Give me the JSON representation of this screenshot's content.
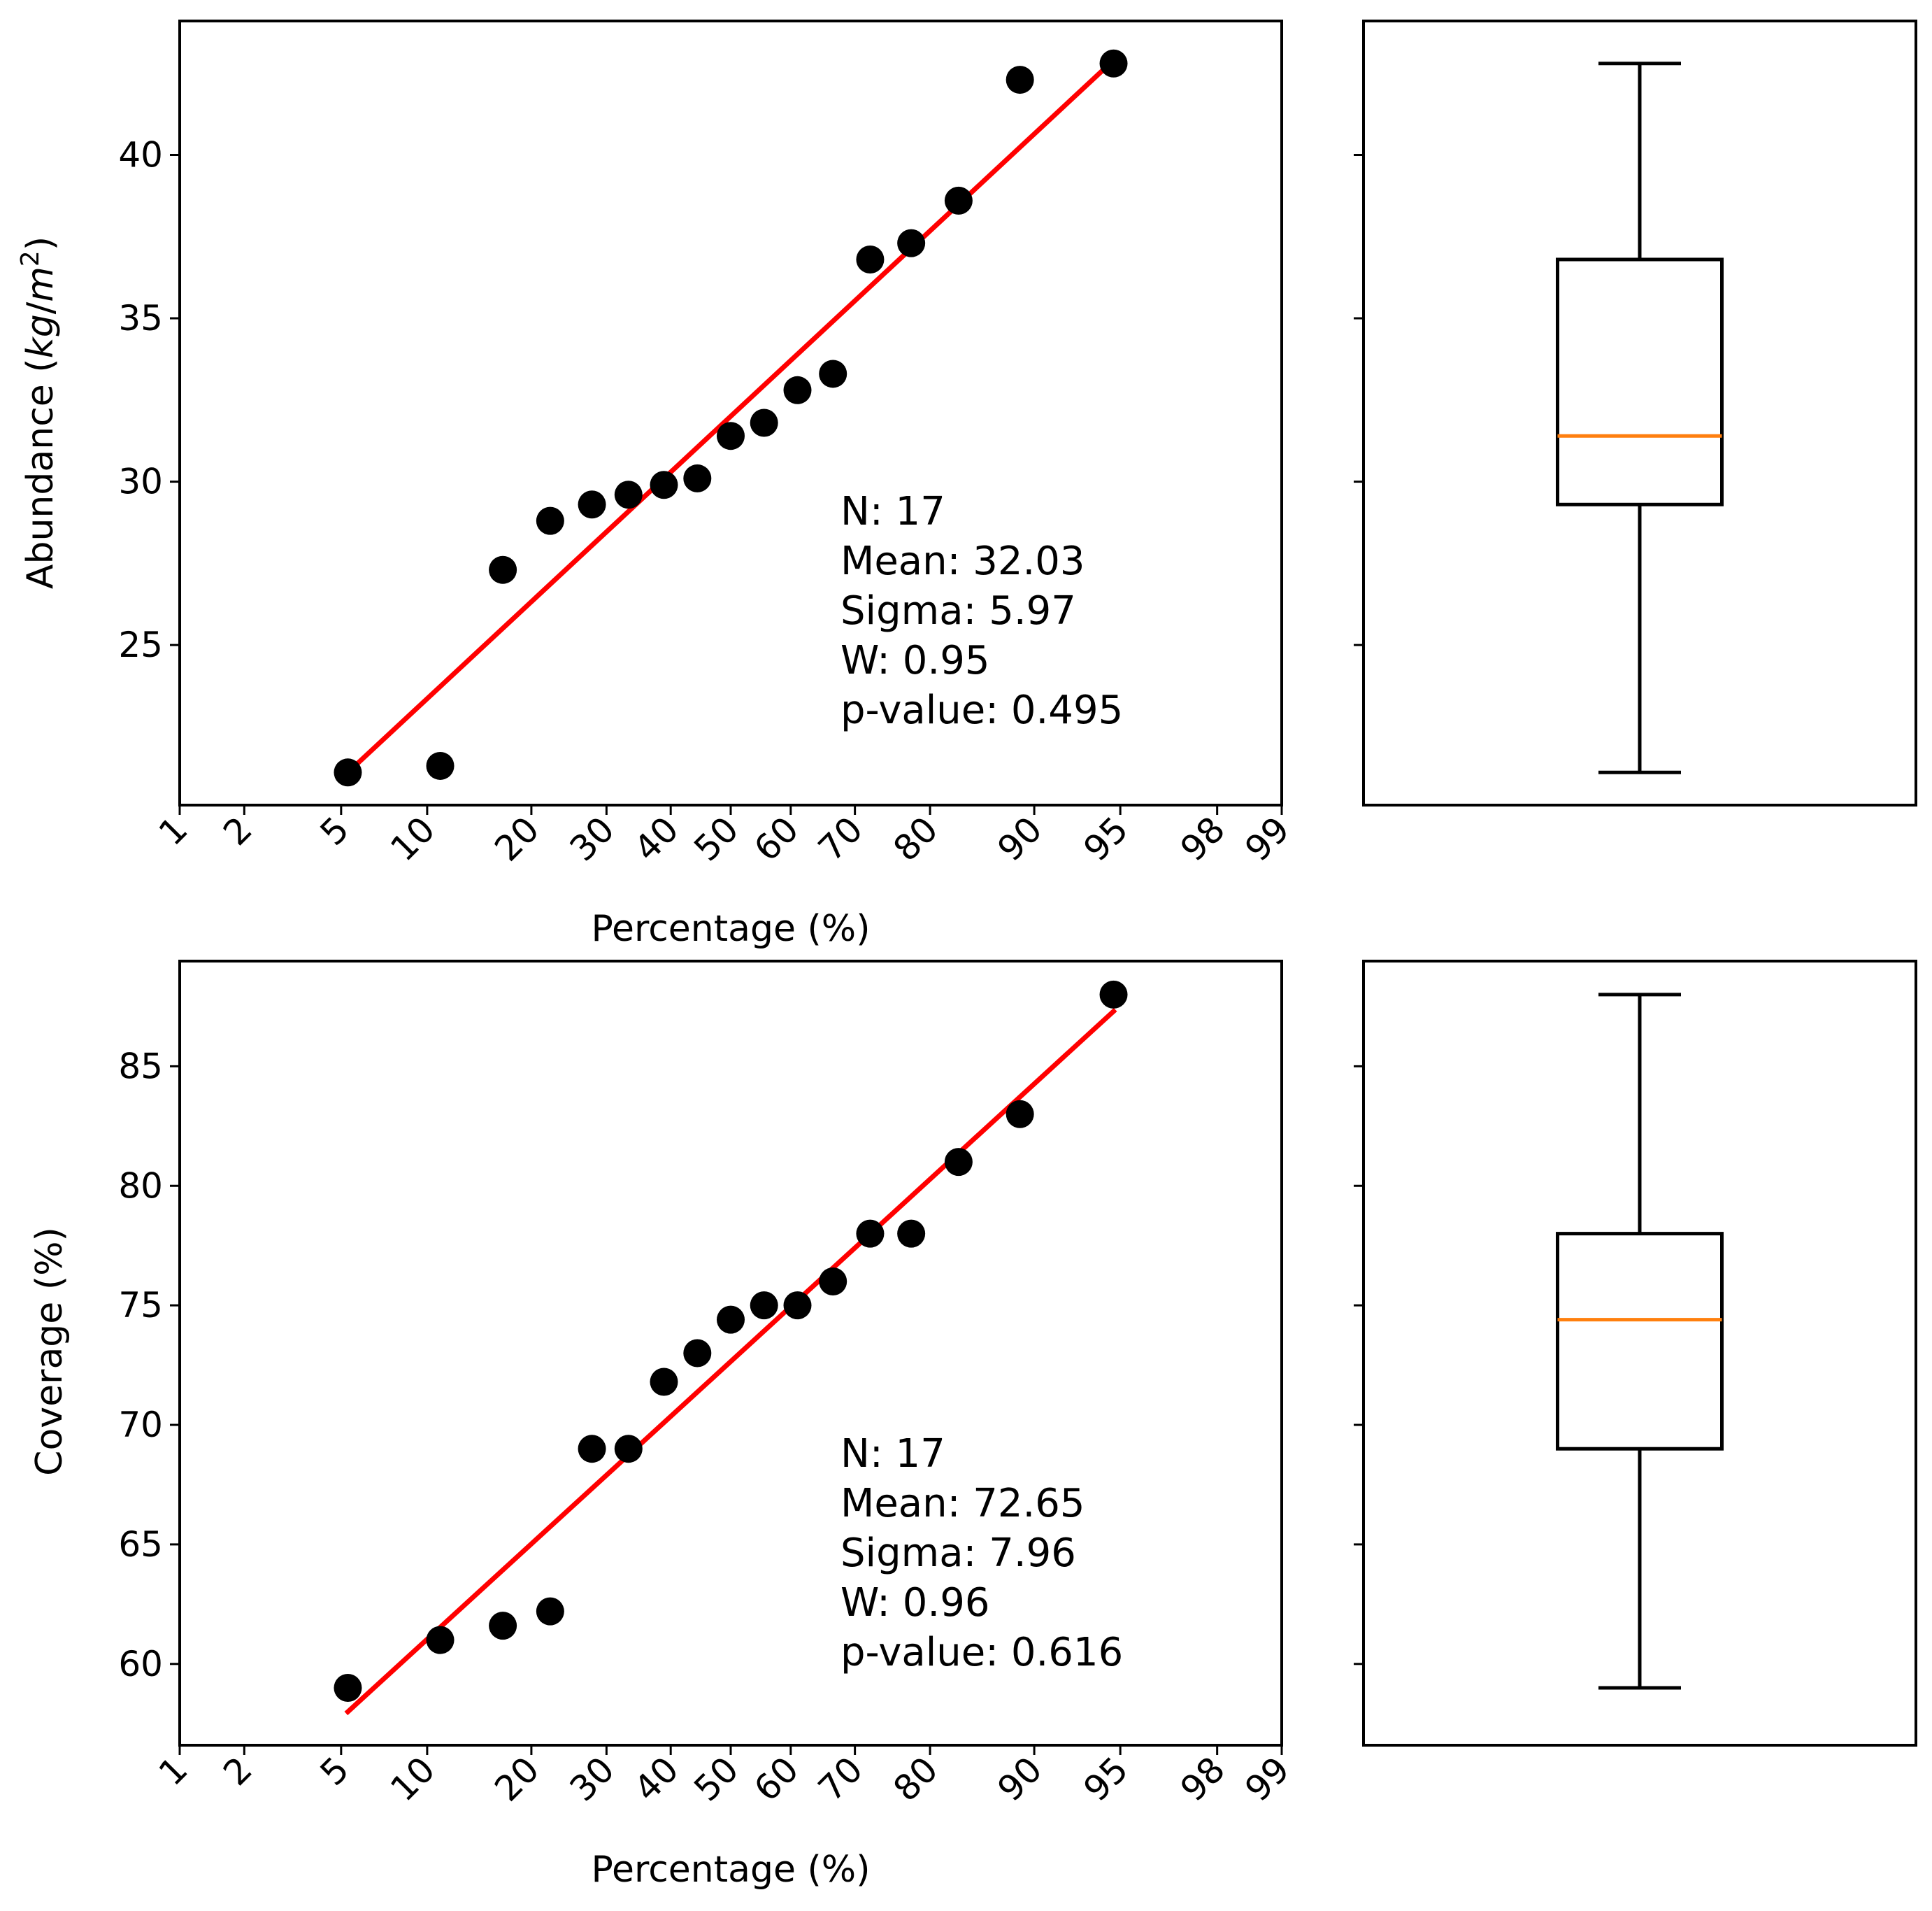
{
  "colors": {
    "points": "#000000",
    "fit_line": "#ff0000",
    "median": "#ff7f0e",
    "axes": "#000000"
  },
  "chart_data": [
    {
      "type": "scatter",
      "subtype": "probability-plot",
      "id": "abundance",
      "xlabel": "Percentage (%)",
      "ylabel": "Abundance (kg/m²)",
      "ylabel_parts": [
        "Abundance (",
        "kg",
        "/",
        "m",
        "2",
        ")"
      ],
      "x_ticks": [
        1,
        2,
        5,
        10,
        20,
        30,
        40,
        50,
        60,
        70,
        80,
        90,
        95,
        98,
        99
      ],
      "y_ticks": [
        25,
        30,
        35,
        40
      ],
      "ylim": [
        20.1,
        44.1
      ],
      "x": [
        5.3,
        11.0,
        16.8,
        22.3,
        27.9,
        33.3,
        38.9,
        44.4,
        50.0,
        55.6,
        61.1,
        66.7,
        72.2,
        77.7,
        83.2,
        88.9,
        94.7
      ],
      "y": [
        21.1,
        21.3,
        27.3,
        28.8,
        29.3,
        29.6,
        29.9,
        30.1,
        31.4,
        31.8,
        32.8,
        33.3,
        36.8,
        37.3,
        38.6,
        42.3,
        42.8
      ],
      "fit_line": {
        "x": [
          5.3,
          94.7
        ],
        "y": [
          21.1,
          42.9
        ]
      },
      "stats": [
        "N: 17",
        "Mean: 32.03",
        "Sigma: 5.97",
        "W: 0.95",
        "p-value: 0.495"
      ]
    },
    {
      "type": "box",
      "id": "abundance-box",
      "ylim": [
        20.1,
        44.1
      ],
      "y_ticks": [
        25,
        30,
        35,
        40
      ],
      "whisker_low": 21.1,
      "q1": 29.3,
      "median": 31.4,
      "q3": 36.8,
      "whisker_high": 42.8
    },
    {
      "type": "scatter",
      "subtype": "probability-plot",
      "id": "coverage",
      "xlabel": "Percentage (%)",
      "ylabel": "Coverage (%)",
      "x_ticks": [
        1,
        2,
        5,
        10,
        20,
        30,
        40,
        50,
        60,
        70,
        80,
        90,
        95,
        98,
        99
      ],
      "y_ticks": [
        60,
        65,
        70,
        75,
        80,
        85
      ],
      "ylim": [
        56.6,
        89.4
      ],
      "x": [
        5.3,
        11.0,
        16.8,
        22.3,
        27.9,
        33.3,
        38.9,
        44.4,
        50.0,
        55.6,
        61.1,
        66.7,
        72.2,
        77.7,
        83.2,
        88.9,
        94.7
      ],
      "y": [
        59.0,
        61.0,
        61.6,
        62.2,
        69.0,
        69.0,
        71.8,
        73.0,
        74.4,
        75.0,
        75.0,
        76.0,
        78.0,
        78.0,
        81.0,
        83.0,
        88.0
      ],
      "fit_line": {
        "x": [
          5.3,
          94.7
        ],
        "y": [
          58.0,
          87.3
        ]
      },
      "stats": [
        "N: 17",
        "Mean: 72.65",
        "Sigma: 7.96",
        "W: 0.96",
        "p-value: 0.616"
      ]
    },
    {
      "type": "box",
      "id": "coverage-box",
      "ylim": [
        56.6,
        89.4
      ],
      "y_ticks": [
        60,
        65,
        70,
        75,
        80,
        85
      ],
      "whisker_low": 59.0,
      "q1": 69.0,
      "median": 74.4,
      "q3": 78.0,
      "whisker_high": 88.0
    }
  ]
}
